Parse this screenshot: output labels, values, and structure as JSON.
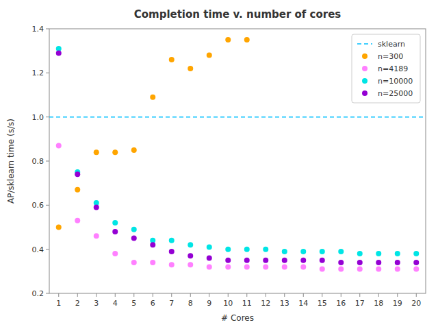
{
  "chart_data": {
    "type": "scatter",
    "title": "Completion time v. number of cores",
    "x_label": "# Cores",
    "y_label": "AP/sklearn time (s/s)",
    "xlim": [
      0.5,
      20.5
    ],
    "ylim": [
      0.2,
      1.4
    ],
    "xticks": [
      1,
      2,
      3,
      4,
      5,
      6,
      7,
      8,
      9,
      10,
      11,
      12,
      13,
      14,
      15,
      16,
      17,
      18,
      19,
      20
    ],
    "yticks": [
      0.2,
      0.4,
      0.6,
      0.8,
      {
        "value": 1.0,
        "label": "1.0"
      },
      1.2,
      1.4
    ],
    "grid": false,
    "legend": "upper right",
    "series": [
      {
        "name": "sklearn",
        "type": "hline",
        "color": "#00bfff",
        "line_style": "dashed",
        "values": [
          1.0
        ]
      },
      {
        "name": "n=300",
        "type": "scatter",
        "color": "orange",
        "marker": "circle",
        "x": [
          1,
          2,
          3,
          4,
          5,
          6,
          7,
          8,
          9,
          10,
          11
        ],
        "values": [
          0.5,
          0.67,
          0.84,
          0.84,
          0.85,
          1.09,
          1.26,
          1.22,
          1.28,
          1.35,
          1.35
        ]
      },
      {
        "name": "n=4189",
        "type": "scatter",
        "color": "#ff80ff",
        "marker": "circle",
        "x": [
          1,
          2,
          3,
          4,
          5,
          6,
          7,
          8,
          9,
          10,
          11,
          12,
          13,
          14,
          15,
          16,
          17,
          18,
          19,
          20
        ],
        "values": [
          0.87,
          0.53,
          0.46,
          0.38,
          0.34,
          0.34,
          0.33,
          0.33,
          0.32,
          0.32,
          0.32,
          0.32,
          0.32,
          0.32,
          0.31,
          0.31,
          0.31,
          0.31,
          0.31,
          0.31
        ]
      },
      {
        "name": "n=10000",
        "type": "scatter",
        "color": "#00e5e5",
        "marker": "circle",
        "x": [
          1,
          2,
          3,
          4,
          5,
          6,
          7,
          8,
          9,
          10,
          11,
          12,
          13,
          14,
          15,
          16,
          17,
          18,
          19,
          20
        ],
        "values": [
          1.31,
          0.75,
          0.61,
          0.52,
          0.49,
          0.44,
          0.44,
          0.42,
          0.41,
          0.4,
          0.4,
          0.4,
          0.39,
          0.39,
          0.39,
          0.39,
          0.38,
          0.38,
          0.38,
          0.38
        ]
      },
      {
        "name": "n=25000",
        "type": "scatter",
        "color": "#9400d3",
        "marker": "circle",
        "x": [
          1,
          2,
          3,
          4,
          5,
          6,
          7,
          8,
          9,
          10,
          11,
          12,
          13,
          14,
          15,
          16,
          17,
          18,
          19,
          20
        ],
        "values": [
          1.29,
          0.74,
          0.59,
          0.48,
          0.45,
          0.42,
          0.39,
          0.37,
          0.36,
          0.35,
          0.35,
          0.35,
          0.35,
          0.35,
          0.35,
          0.34,
          0.34,
          0.34,
          0.34,
          0.34
        ]
      }
    ]
  }
}
